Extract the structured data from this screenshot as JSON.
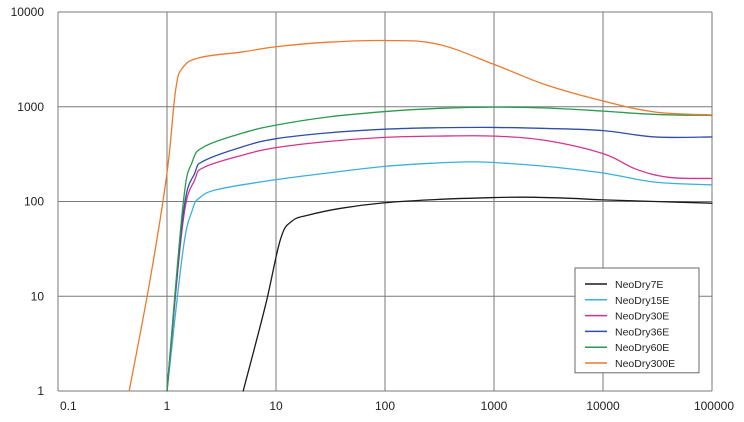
{
  "chart_data": {
    "type": "line",
    "title": "",
    "xlabel": "",
    "ylabel": "",
    "x_scale": "log",
    "y_scale": "log",
    "xlim": [
      0.1,
      100000
    ],
    "ylim": [
      1,
      10000
    ],
    "grid": true,
    "legend_position": "bottom-right",
    "x_ticks": [
      0.1,
      1,
      10,
      100,
      1000,
      10000,
      100000
    ],
    "x_tick_labels": [
      "0.1",
      "1",
      "10",
      "100",
      "1000",
      "10000",
      "100000"
    ],
    "y_ticks": [
      1,
      10,
      100,
      1000,
      10000
    ],
    "y_tick_labels": [
      "1",
      "10",
      "100",
      "1000",
      "10000"
    ],
    "series": [
      {
        "name": "NeoDry7E",
        "color": "#1a1a1a",
        "points": [
          [
            5,
            1
          ],
          [
            8,
            8
          ],
          [
            11,
            40
          ],
          [
            14,
            62
          ],
          [
            20,
            72
          ],
          [
            40,
            85
          ],
          [
            100,
            97
          ],
          [
            300,
            105
          ],
          [
            1000,
            110
          ],
          [
            2000,
            111
          ],
          [
            5000,
            108
          ],
          [
            10000,
            104
          ],
          [
            30000,
            100
          ],
          [
            100000,
            96
          ]
        ]
      },
      {
        "name": "NeoDry15E",
        "color": "#3ab0dc",
        "points": [
          [
            1,
            1
          ],
          [
            1.4,
            30
          ],
          [
            1.7,
            80
          ],
          [
            2,
            110
          ],
          [
            3,
            135
          ],
          [
            10,
            170
          ],
          [
            30,
            200
          ],
          [
            100,
            235
          ],
          [
            300,
            255
          ],
          [
            600,
            262
          ],
          [
            1000,
            258
          ],
          [
            3000,
            235
          ],
          [
            10000,
            200
          ],
          [
            30000,
            160
          ],
          [
            100000,
            150
          ]
        ]
      },
      {
        "name": "NeoDry30E",
        "color": "#d6338f",
        "points": [
          [
            1,
            1
          ],
          [
            1.4,
            60
          ],
          [
            1.8,
            170
          ],
          [
            2.2,
            230
          ],
          [
            5,
            310
          ],
          [
            10,
            370
          ],
          [
            30,
            430
          ],
          [
            100,
            475
          ],
          [
            300,
            490
          ],
          [
            1000,
            490
          ],
          [
            3000,
            440
          ],
          [
            10000,
            320
          ],
          [
            20000,
            220
          ],
          [
            40000,
            180
          ],
          [
            100000,
            175
          ]
        ]
      },
      {
        "name": "NeoDry36E",
        "color": "#2f4fa8",
        "points": [
          [
            1,
            1
          ],
          [
            1.4,
            70
          ],
          [
            1.8,
            200
          ],
          [
            2.2,
            270
          ],
          [
            5,
            380
          ],
          [
            10,
            460
          ],
          [
            30,
            530
          ],
          [
            100,
            580
          ],
          [
            300,
            600
          ],
          [
            1000,
            605
          ],
          [
            3000,
            590
          ],
          [
            10000,
            560
          ],
          [
            30000,
            480
          ],
          [
            100000,
            480
          ]
        ]
      },
      {
        "name": "NeoDry60E",
        "color": "#2b9a4e",
        "points": [
          [
            1,
            1
          ],
          [
            1.4,
            90
          ],
          [
            1.7,
            260
          ],
          [
            2.2,
            380
          ],
          [
            5,
            530
          ],
          [
            10,
            640
          ],
          [
            30,
            780
          ],
          [
            100,
            890
          ],
          [
            300,
            960
          ],
          [
            1000,
            990
          ],
          [
            3000,
            970
          ],
          [
            10000,
            900
          ],
          [
            30000,
            830
          ],
          [
            100000,
            810
          ]
        ]
      },
      {
        "name": "NeoDry300E",
        "color": "#ec7a2e",
        "points": [
          [
            0.45,
            1
          ],
          [
            0.7,
            15
          ],
          [
            1,
            200
          ],
          [
            1.2,
            1500
          ],
          [
            1.4,
            2600
          ],
          [
            2,
            3300
          ],
          [
            5,
            3800
          ],
          [
            10,
            4300
          ],
          [
            30,
            4800
          ],
          [
            100,
            5000
          ],
          [
            300,
            4600
          ],
          [
            1000,
            2800
          ],
          [
            3000,
            1700
          ],
          [
            10000,
            1150
          ],
          [
            30000,
            880
          ],
          [
            100000,
            820
          ]
        ]
      }
    ]
  }
}
